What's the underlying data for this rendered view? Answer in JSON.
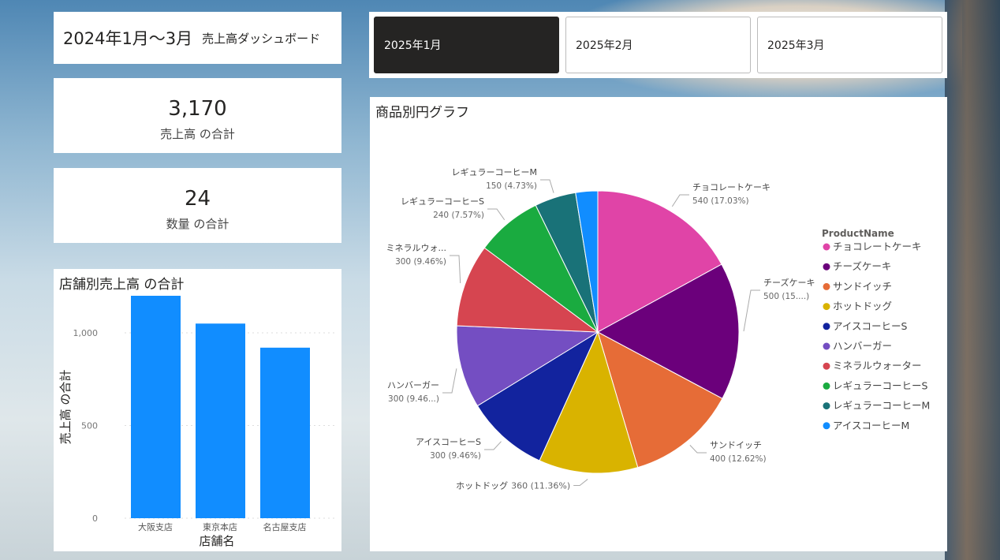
{
  "background": {
    "description_icon": "sky-photo"
  },
  "header": {
    "title": "2024年1月〜3月",
    "subtitle": "売上高ダッシュボード"
  },
  "kpis": [
    {
      "value": "3,170",
      "label": "売上高 の合計"
    },
    {
      "value": "24",
      "label": "数量 の合計"
    }
  ],
  "slicer": {
    "options": [
      {
        "label": "2025年1月",
        "selected": true
      },
      {
        "label": "2025年2月",
        "selected": false
      },
      {
        "label": "2025年3月",
        "selected": false
      }
    ]
  },
  "chart_data": [
    {
      "type": "bar",
      "title": "店舗別売上高 の合計",
      "xlabel": "店舗名",
      "ylabel": "売上高 の合計",
      "categories": [
        "大阪支店",
        "東京本店",
        "名古屋支店"
      ],
      "values": [
        1200,
        1050,
        920
      ],
      "ylim": [
        0,
        1200
      ],
      "yticks": [
        0,
        500,
        1000
      ],
      "ytick_labels": [
        "0",
        "500",
        "1,000"
      ],
      "grid": true,
      "color": "#118DFF"
    },
    {
      "type": "pie",
      "title": "商品別円グラフ",
      "legend_title": "ProductName",
      "legend_position": "right",
      "slices": [
        {
          "name": "チョコレートケーキ",
          "value": 540,
          "label": "チョコレートケーキ",
          "detail": "540 (17.03%)",
          "color": "#E044A7"
        },
        {
          "name": "チーズケーキ",
          "value": 500,
          "label": "チーズケーキ",
          "detail": "500 (15....)",
          "color": "#6B007B"
        },
        {
          "name": "サンドイッチ",
          "value": 400,
          "label": "サンドイッチ",
          "detail": "400 (12.62%)",
          "color": "#E66C37"
        },
        {
          "name": "ホットドッグ",
          "value": 360,
          "label": "ホットドッグ",
          "detail": "360 (11.36%)",
          "color": "#D9B300"
        },
        {
          "name": "アイスコーヒーS",
          "value": 300,
          "label": "アイスコーヒーS",
          "detail": "300 (9.46%)",
          "color": "#12239E"
        },
        {
          "name": "ハンバーガー",
          "value": 300,
          "label": "ハンバーガー",
          "detail": "300 (9.46...)",
          "color": "#744EC2"
        },
        {
          "name": "ミネラルウォーター",
          "value": 300,
          "label": "ミネラルウォ...",
          "detail": "300 (9.46%)",
          "color": "#D64550"
        },
        {
          "name": "レギュラーコーヒーS",
          "value": 240,
          "label": "レギュラーコーヒーS",
          "detail": "240 (7.57%)",
          "color": "#1AAB40"
        },
        {
          "name": "レギュラーコーヒーM",
          "value": 150,
          "label": "レギュラーコーヒーM",
          "detail": "150 (4.73%)",
          "color": "#197278"
        },
        {
          "name": "アイスコーヒーM",
          "value": 80,
          "label": "",
          "detail": "",
          "color": "#118DFF"
        }
      ]
    }
  ]
}
